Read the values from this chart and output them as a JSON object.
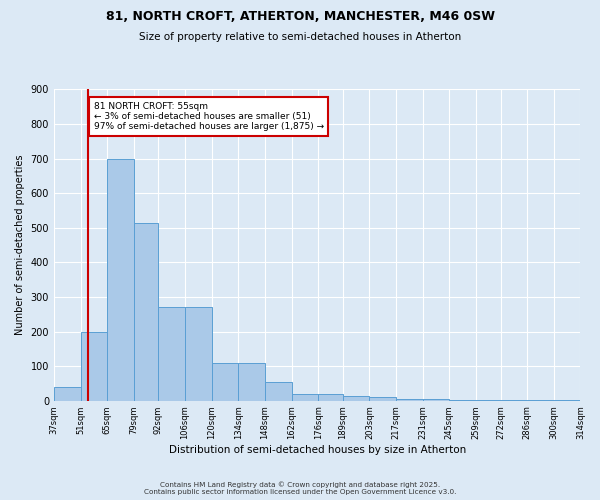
{
  "title1": "81, NORTH CROFT, ATHERTON, MANCHESTER, M46 0SW",
  "title2": "Size of property relative to semi-detached houses in Atherton",
  "xlabel": "Distribution of semi-detached houses by size in Atherton",
  "ylabel": "Number of semi-detached properties",
  "bin_edges": [
    37,
    51,
    65,
    79,
    92,
    106,
    120,
    134,
    148,
    162,
    176,
    189,
    203,
    217,
    231,
    245,
    259,
    272,
    286,
    300,
    314
  ],
  "bar_heights": [
    40,
    200,
    700,
    515,
    270,
    270,
    110,
    110,
    55,
    20,
    20,
    15,
    10,
    5,
    5,
    3,
    2,
    2,
    1,
    1
  ],
  "bar_color": "#aac9e8",
  "bar_edge_color": "#5a9fd4",
  "red_line_x": 55,
  "annotation_title": "81 NORTH CROFT: 55sqm",
  "annotation_line1": "← 3% of semi-detached houses are smaller (51)",
  "annotation_line2": "97% of semi-detached houses are larger (1,875) →",
  "annotation_box_color": "#ffffff",
  "annotation_box_edge": "#cc0000",
  "red_line_color": "#cc0000",
  "background_color": "#dce9f5",
  "grid_color": "#ffffff",
  "ylim": [
    0,
    900
  ],
  "yticks": [
    0,
    100,
    200,
    300,
    400,
    500,
    600,
    700,
    800,
    900
  ],
  "footer1": "Contains HM Land Registry data © Crown copyright and database right 2025.",
  "footer2": "Contains public sector information licensed under the Open Government Licence v3.0."
}
